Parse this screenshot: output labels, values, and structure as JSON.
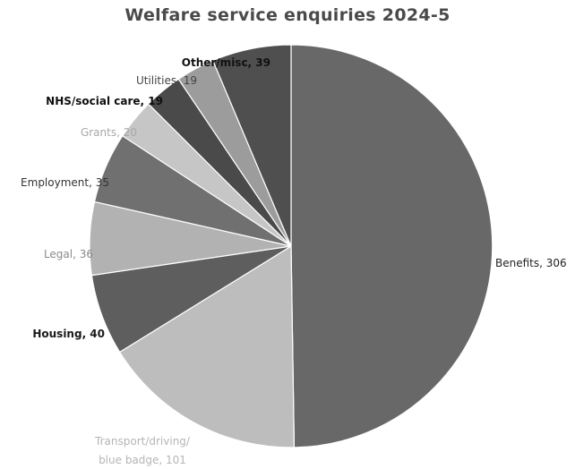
{
  "chart_data": {
    "type": "pie",
    "title": "Welfare service enquiries 2024-5",
    "slices": [
      {
        "category": "Benefits",
        "value": 306,
        "label": "Benefits, 306",
        "color": "#686868",
        "label_color": "#222222",
        "label_weight": "normal"
      },
      {
        "category": "Transport/driving/ blue badge",
        "value": 101,
        "label_lines": [
          "Transport/driving/",
          "blue badge, 101"
        ],
        "color": "#bdbdbd",
        "label_color": "#b5b5b5",
        "label_weight": "normal"
      },
      {
        "category": "Housing",
        "value": 40,
        "label": "Housing, 40",
        "color": "#5e5e5e",
        "label_color": "#1a1a1a",
        "label_weight": "bold"
      },
      {
        "category": "Legal",
        "value": 36,
        "label": "Legal, 36",
        "color": "#b2b2b2",
        "label_color": "#8a8a8a",
        "label_weight": "normal"
      },
      {
        "category": "Employment",
        "value": 35,
        "label": "Employment, 35",
        "color": "#707070",
        "label_color": "#333333",
        "label_weight": "normal"
      },
      {
        "category": "Grants",
        "value": 20,
        "label": "Grants, 20",
        "color": "#c6c6c6",
        "label_color": "#a8a8a8",
        "label_weight": "normal"
      },
      {
        "category": "NHS/social care",
        "value": 19,
        "label": "NHS/social care, 19",
        "color": "#4a4a4a",
        "label_color": "#111111",
        "label_weight": "bold"
      },
      {
        "category": "Utilities",
        "value": 19,
        "label": "Utilities, 19",
        "color": "#9c9c9c",
        "label_color": "#444444",
        "label_weight": "normal"
      },
      {
        "category": "Other/misc",
        "value": 39,
        "label": "Other/misc, 39",
        "color": "#4f4f4f",
        "label_color": "#111111",
        "label_weight": "bold"
      }
    ],
    "start_angle": "12 o'clock",
    "direction": "clockwise",
    "legend": "none"
  }
}
